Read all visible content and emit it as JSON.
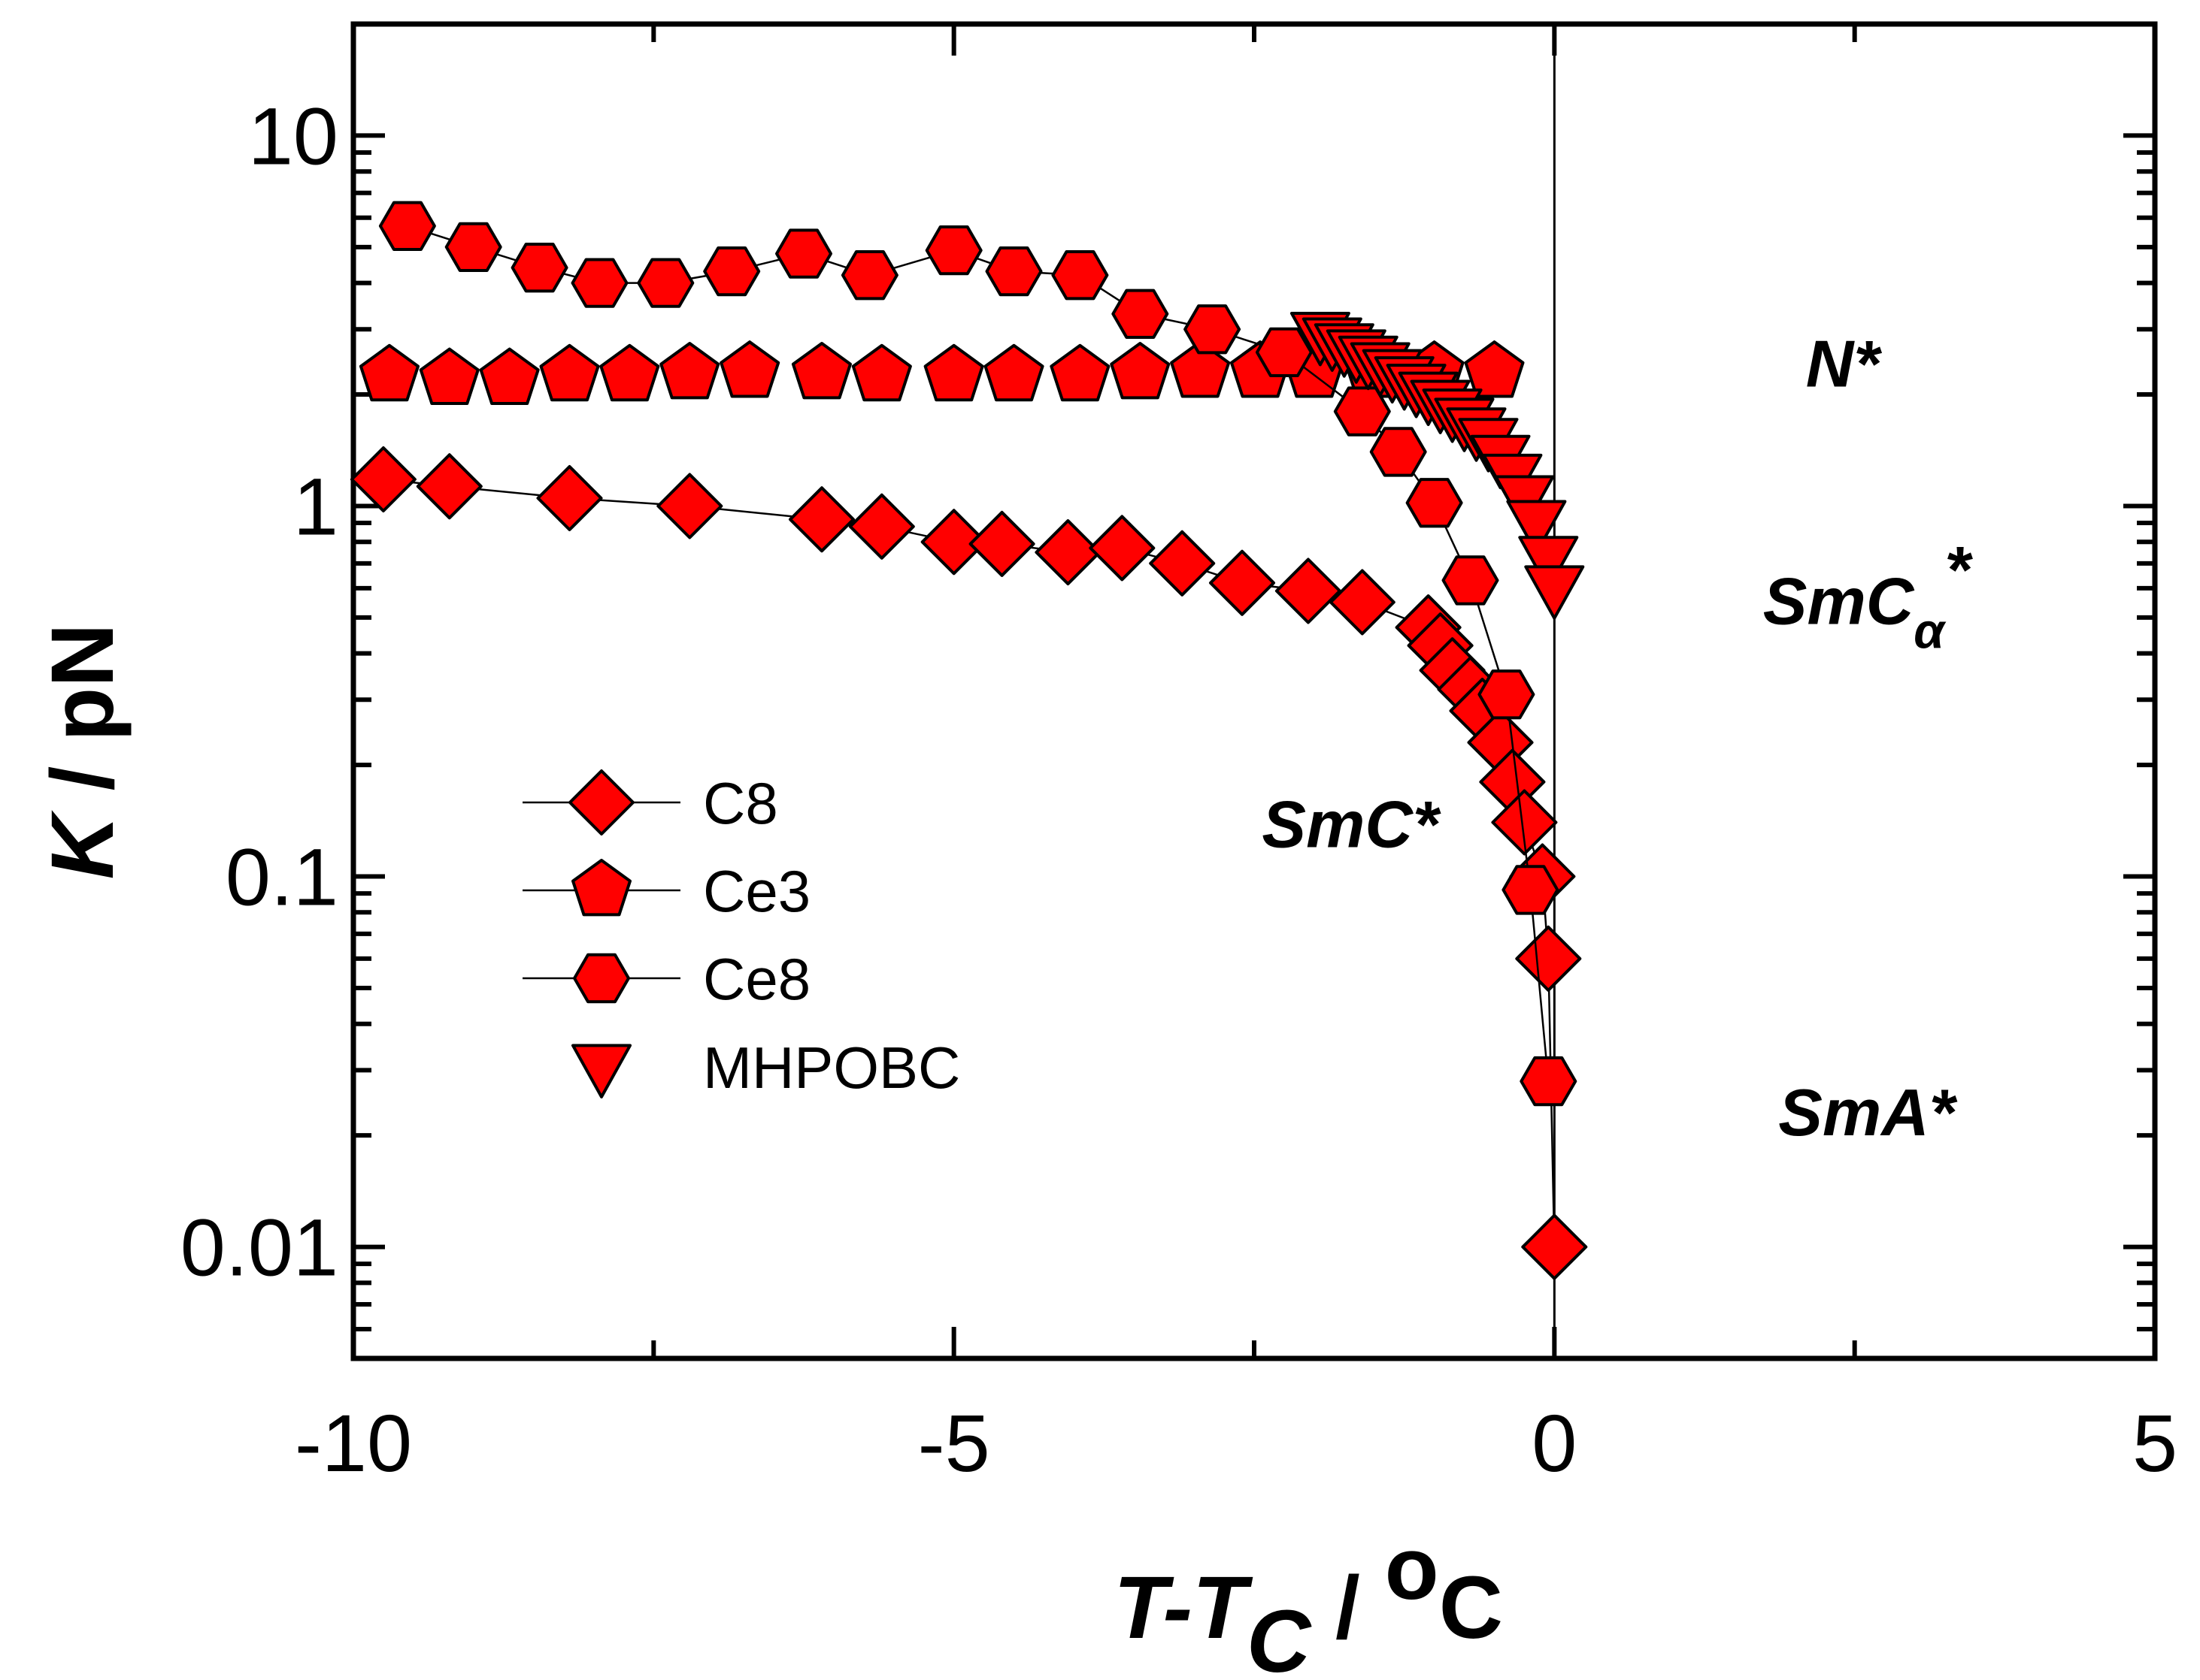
{
  "chart_data": {
    "type": "scatter",
    "xlabel": "T-T_C / °C",
    "xlabel_parts": {
      "main": "T-T",
      "sub": "C",
      "unit": " / ",
      "deg": "o",
      "deg_unit": "C"
    },
    "ylabel": "K / pN",
    "ylabel_parts": {
      "var": "K",
      "unit": " / pN"
    },
    "xlim": [
      -10,
      5
    ],
    "ylim": [
      0.005,
      20
    ],
    "yscale": "log",
    "x_ticks": [
      -10,
      -5,
      0,
      5
    ],
    "x_tick_labels": [
      "-10",
      "-5",
      "0",
      "5"
    ],
    "y_ticks": [
      0.01,
      0.1,
      1,
      10
    ],
    "y_tick_labels": [
      "0.01",
      "0.1",
      "1",
      "10"
    ],
    "grid": false,
    "legend_position": "center-left",
    "vertical_line_at_x": 0,
    "marker_color": "#ff0000",
    "series": [
      {
        "name": "C8",
        "marker": "diamond",
        "line": true,
        "x": [
          -9.75,
          -9.2,
          -8.2,
          -7.2,
          -6.1,
          -5.6,
          -5.0,
          -4.6,
          -4.05,
          -3.6,
          -3.1,
          -2.6,
          -2.05,
          -1.6,
          -1.05,
          -0.95,
          -0.85,
          -0.7,
          -0.6,
          -0.45,
          -0.35,
          -0.25,
          -0.1,
          -0.05,
          0.0
        ],
        "values": [
          1.18,
          1.13,
          1.05,
          1.0,
          0.92,
          0.88,
          0.8,
          0.79,
          0.75,
          0.77,
          0.7,
          0.62,
          0.59,
          0.55,
          0.47,
          0.42,
          0.36,
          0.32,
          0.28,
          0.23,
          0.18,
          0.14,
          0.1,
          0.06,
          0.01
        ]
      },
      {
        "name": "Ce3",
        "marker": "pentagon",
        "line": false,
        "x": [
          -9.7,
          -9.2,
          -8.7,
          -8.2,
          -7.7,
          -7.2,
          -6.7,
          -6.1,
          -5.6,
          -5.0,
          -4.5,
          -3.95,
          -3.45,
          -2.95,
          -2.45,
          -2.0,
          -1.5,
          -1.0,
          -0.5
        ],
        "values": [
          2.25,
          2.2,
          2.2,
          2.25,
          2.25,
          2.28,
          2.3,
          2.28,
          2.25,
          2.25,
          2.25,
          2.25,
          2.28,
          2.3,
          2.3,
          2.3,
          2.3,
          2.3,
          2.3
        ]
      },
      {
        "name": "Ce8",
        "marker": "hexagon",
        "line": true,
        "x": [
          -9.55,
          -9.0,
          -8.45,
          -7.95,
          -7.4,
          -6.85,
          -6.25,
          -5.7,
          -5.0,
          -4.5,
          -3.95,
          -3.45,
          -2.85,
          -2.25,
          -1.6,
          -1.3,
          -1.0,
          -0.7,
          -0.4,
          -0.2,
          -0.05
        ],
        "values": [
          5.7,
          5.0,
          4.4,
          4.0,
          4.0,
          4.3,
          4.8,
          4.2,
          4.9,
          4.3,
          4.2,
          3.3,
          3.0,
          2.6,
          1.8,
          1.4,
          1.02,
          0.63,
          0.31,
          0.092,
          0.028
        ]
      },
      {
        "name": "MHPOBC",
        "marker": "triangle-down",
        "line": true,
        "x": [
          -1.95,
          -1.85,
          -1.75,
          -1.65,
          -1.55,
          -1.45,
          -1.35,
          -1.25,
          -1.15,
          -1.05,
          -0.95,
          -0.85,
          -0.75,
          -0.65,
          -0.55,
          -0.45,
          -0.35,
          -0.25,
          -0.15,
          -0.05,
          0.0
        ],
        "values": [
          2.9,
          2.8,
          2.7,
          2.6,
          2.5,
          2.4,
          2.3,
          2.2,
          2.1,
          2.0,
          1.9,
          1.8,
          1.7,
          1.6,
          1.5,
          1.35,
          1.2,
          1.05,
          0.9,
          0.72,
          0.6
        ]
      }
    ],
    "annotations": [
      {
        "id": "nstar",
        "text": "N*",
        "x": 2.4,
        "y": 2.1
      },
      {
        "id": "smca",
        "text": "SmC",
        "sub": "α",
        "sup": "*",
        "x": 2.6,
        "y": 0.48
      },
      {
        "id": "smc",
        "text": "SmC*",
        "x": -1.7,
        "y": 0.12
      },
      {
        "id": "sma",
        "text": "SmA*",
        "x": 2.6,
        "y": 0.02
      }
    ]
  }
}
